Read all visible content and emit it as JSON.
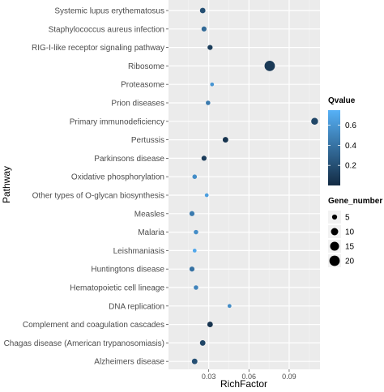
{
  "chart_data": {
    "type": "scatter",
    "xlabel": "RichFactor",
    "ylabel": "Pathway",
    "x_ticks": [
      0.03,
      0.06,
      0.09
    ],
    "xlim": [
      0.0,
      0.113
    ],
    "categories": [
      "Systemic lupus erythematosus",
      "Staphylococcus aureus infection",
      "RIG-I-like receptor signaling pathway",
      "Ribosome",
      "Proteasome",
      "Prion diseases",
      "Primary immunodeficiency",
      "Pertussis",
      "Parkinsons disease",
      "Oxidative phosphorylation",
      "Other types of O-glycan biosynthesis",
      "Measles",
      "Malaria",
      "Leishmaniasis",
      "Huntingtons disease",
      "Hematopoietic cell lineage",
      "DNA replication",
      "Complement and coagulation cascades",
      "Chagas disease (American trypanosomiasis)",
      "Alzheimers disease"
    ],
    "points": [
      {
        "pathway": "Systemic lupus erythematosus",
        "rich_factor": 0.0255,
        "gene_number": 6,
        "qvalue": 0.2
      },
      {
        "pathway": "Staphylococcus aureus infection",
        "rich_factor": 0.0265,
        "gene_number": 5,
        "qvalue": 0.35
      },
      {
        "pathway": "RIG-I-like receptor signaling pathway",
        "rich_factor": 0.031,
        "gene_number": 5,
        "qvalue": 0.1
      },
      {
        "pathway": "Ribosome",
        "rich_factor": 0.0755,
        "gene_number": 20,
        "qvalue": 0.08
      },
      {
        "pathway": "Proteasome",
        "rich_factor": 0.0325,
        "gene_number": 3,
        "qvalue": 0.6
      },
      {
        "pathway": "Prion diseases",
        "rich_factor": 0.0295,
        "gene_number": 4,
        "qvalue": 0.45
      },
      {
        "pathway": "Primary immunodeficiency",
        "rich_factor": 0.109,
        "gene_number": 9,
        "qvalue": 0.15
      },
      {
        "pathway": "Pertussis",
        "rich_factor": 0.0425,
        "gene_number": 6,
        "qvalue": 0.05
      },
      {
        "pathway": "Parkinsons disease",
        "rich_factor": 0.0265,
        "gene_number": 5,
        "qvalue": 0.1
      },
      {
        "pathway": "Oxidative phosphorylation",
        "rich_factor": 0.0195,
        "gene_number": 4,
        "qvalue": 0.55
      },
      {
        "pathway": "Other types of O-glycan biosynthesis",
        "rich_factor": 0.0285,
        "gene_number": 3,
        "qvalue": 0.65
      },
      {
        "pathway": "Measles",
        "rich_factor": 0.0175,
        "gene_number": 5,
        "qvalue": 0.45
      },
      {
        "pathway": "Malaria",
        "rich_factor": 0.0205,
        "gene_number": 4,
        "qvalue": 0.55
      },
      {
        "pathway": "Leishmaniasis",
        "rich_factor": 0.0195,
        "gene_number": 3,
        "qvalue": 0.7
      },
      {
        "pathway": "Huntingtons disease",
        "rich_factor": 0.0175,
        "gene_number": 5,
        "qvalue": 0.4
      },
      {
        "pathway": "Hematopoietic cell lineage",
        "rich_factor": 0.0205,
        "gene_number": 4,
        "qvalue": 0.5
      },
      {
        "pathway": "DNA replication",
        "rich_factor": 0.0455,
        "gene_number": 3,
        "qvalue": 0.55
      },
      {
        "pathway": "Complement and coagulation cascades",
        "rich_factor": 0.031,
        "gene_number": 6,
        "qvalue": 0.05
      },
      {
        "pathway": "Chagas disease (American trypanosomiasis)",
        "rich_factor": 0.0255,
        "gene_number": 6,
        "qvalue": 0.15
      },
      {
        "pathway": "Alzheimers disease",
        "rich_factor": 0.0195,
        "gene_number": 6,
        "qvalue": 0.2
      }
    ],
    "color_legend": {
      "title": "Qvalue",
      "ticks": [
        0.2,
        0.4,
        0.6
      ],
      "range": [
        0.0,
        0.75
      ],
      "low_color": "#132B43",
      "high_color": "#56B1F7"
    },
    "size_legend": {
      "title": "Gene_number",
      "values": [
        5,
        10,
        15,
        20
      ],
      "range": [
        3,
        20
      ]
    },
    "panel_color": "#ebebeb",
    "grid": true,
    "legend_position": "right"
  }
}
